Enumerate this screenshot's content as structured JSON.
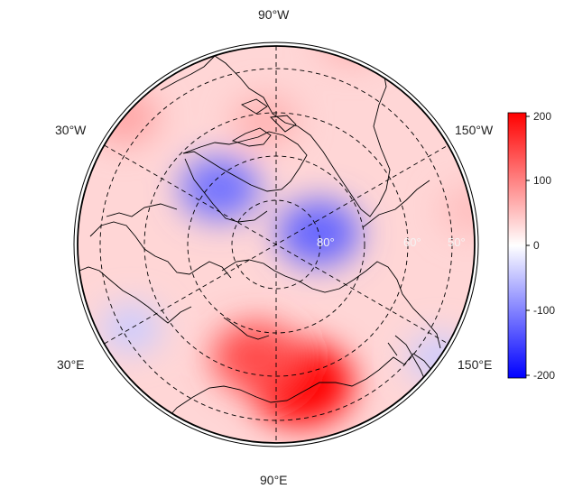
{
  "map": {
    "projection": "north-polar-stereographic",
    "lon_labels": {
      "top": "90°W",
      "bottom": "90°E",
      "upper_left": "30°W",
      "lower_left": "30°E",
      "upper_right": "150°W",
      "lower_right": "150°E"
    },
    "lat_labels": [
      "80°",
      "60°",
      "50°"
    ],
    "anomaly_blobs": [
      {
        "feature": "positive",
        "lat": 58,
        "lon": 100,
        "value": 200
      },
      {
        "feature": "positive",
        "lat": 64,
        "lon": 80,
        "value": 140
      },
      {
        "feature": "negative",
        "lat": 80,
        "lon": -165,
        "value": -120
      },
      {
        "feature": "negative",
        "lat": 72,
        "lon": -45,
        "value": -110
      },
      {
        "feature": "negative",
        "lat": 52,
        "lon": 30,
        "value": -40
      },
      {
        "feature": "negative",
        "lat": 45,
        "lon": 145,
        "value": -40
      },
      {
        "feature": "positive",
        "lat": 62,
        "lon": -85,
        "value": 60
      },
      {
        "feature": "positive",
        "lat": 45,
        "lon": -40,
        "value": 70
      },
      {
        "feature": "positive",
        "lat": 40,
        "lon": -110,
        "value": 60
      },
      {
        "feature": "positive",
        "lat": 45,
        "lon": -170,
        "value": 50
      }
    ]
  },
  "colorbar": {
    "ticks": [
      "200",
      "100",
      "0",
      "-100",
      "-200"
    ],
    "min": -200,
    "max": 200,
    "colors": {
      "max": "#ff0000",
      "mid": "#ffffff",
      "min": "#0000ff"
    }
  }
}
